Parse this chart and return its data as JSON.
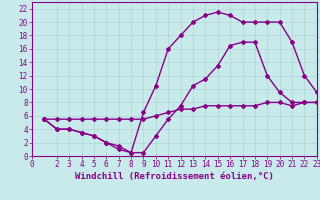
{
  "background_color": "#c8eaea",
  "grid_color": "#b0d4d4",
  "line_color": "#880088",
  "xlabel": "Windchill (Refroidissement éolien,°C)",
  "xlim": [
    0,
    23
  ],
  "ylim": [
    0,
    23
  ],
  "xticks": [
    0,
    2,
    3,
    4,
    5,
    6,
    7,
    8,
    9,
    10,
    11,
    12,
    13,
    14,
    15,
    16,
    17,
    18,
    19,
    20,
    21,
    22,
    23
  ],
  "yticks": [
    0,
    2,
    4,
    6,
    8,
    10,
    12,
    14,
    16,
    18,
    20,
    22
  ],
  "line1_x": [
    1,
    2,
    3,
    4,
    5,
    6,
    7,
    8,
    9,
    10,
    11,
    12,
    13,
    14,
    15,
    16,
    17,
    18,
    19,
    20,
    21,
    22,
    23
  ],
  "line1_y": [
    5.5,
    5.5,
    5.5,
    5.5,
    5.5,
    5.5,
    5.5,
    5.5,
    5.5,
    6.0,
    6.5,
    7.0,
    7.0,
    7.5,
    7.5,
    7.5,
    7.5,
    7.5,
    8.0,
    8.0,
    7.5,
    8.0,
    8.0
  ],
  "line2_x": [
    1,
    2,
    3,
    4,
    5,
    6,
    7,
    8,
    9,
    10,
    11,
    12,
    13,
    14,
    15,
    16,
    17,
    18,
    19,
    20,
    21,
    22,
    23
  ],
  "line2_y": [
    5.5,
    4.0,
    4.0,
    3.5,
    3.0,
    2.0,
    1.0,
    0.5,
    0.5,
    3.0,
    5.5,
    7.5,
    10.5,
    11.5,
    13.5,
    16.5,
    17.0,
    17.0,
    12.0,
    9.5,
    8.0,
    8.0,
    8.0
  ],
  "line3_x": [
    1,
    2,
    3,
    4,
    5,
    6,
    7,
    8,
    9,
    10,
    11,
    12,
    13,
    14,
    15,
    16,
    17,
    18,
    19,
    20,
    21,
    22,
    23
  ],
  "line3_y": [
    5.5,
    4.0,
    4.0,
    3.5,
    3.0,
    2.0,
    1.5,
    0.5,
    6.5,
    10.5,
    16.0,
    18.0,
    20.0,
    21.0,
    21.5,
    21.0,
    20.0,
    20.0,
    20.0,
    20.0,
    17.0,
    12.0,
    9.5
  ],
  "marker": "D",
  "markersize": 2,
  "linewidth": 1.0,
  "tick_fontsize": 5.5,
  "xlabel_fontsize": 6.5
}
